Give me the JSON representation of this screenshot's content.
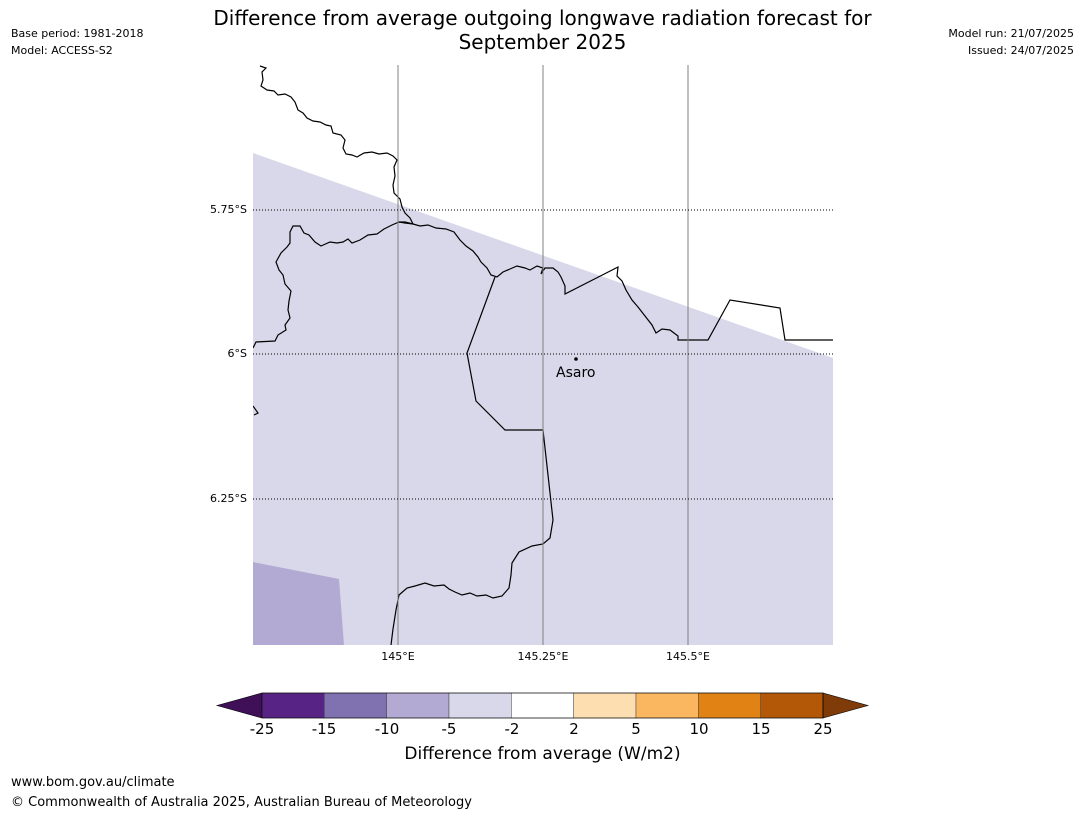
{
  "header": {
    "base_period": "Base period: 1981-2018",
    "model": "Model: ACCESS-S2",
    "title_line1": "Difference from average outgoing longwave radiation forecast for",
    "title_line2": "September 2025",
    "model_run": "Model run: 21/07/2025",
    "issued": "Issued: 24/07/2025"
  },
  "map": {
    "lat_labels": [
      "5.75°S",
      "6°S",
      "6.25°S"
    ],
    "lon_labels": [
      "145°E",
      "145.25°E",
      "145.5°E"
    ],
    "place": {
      "name": "Asaro",
      "lat": -6.01,
      "lon": 145.3
    },
    "fill_colors": {
      "light_lavender": "#d8d8ea",
      "medium_lavender": "#b2aad2"
    }
  },
  "colorbar": {
    "title": "Difference from average (W/m2)",
    "ticks": [
      "-25",
      "-15",
      "-10",
      "-5",
      "-2",
      "2",
      "5",
      "10",
      "15",
      "25"
    ],
    "colors": [
      "#3f0f58",
      "#572486",
      "#8072b1",
      "#b2aad2",
      "#d8d8ea",
      "#ffffff",
      "#fddeb0",
      "#fbb760",
      "#e08214",
      "#b35806",
      "#7f3b08"
    ]
  },
  "footer": {
    "url": "www.bom.gov.au/climate",
    "copyright": "© Commonwealth of Australia 2025, Australian Bureau of Meteorology"
  }
}
